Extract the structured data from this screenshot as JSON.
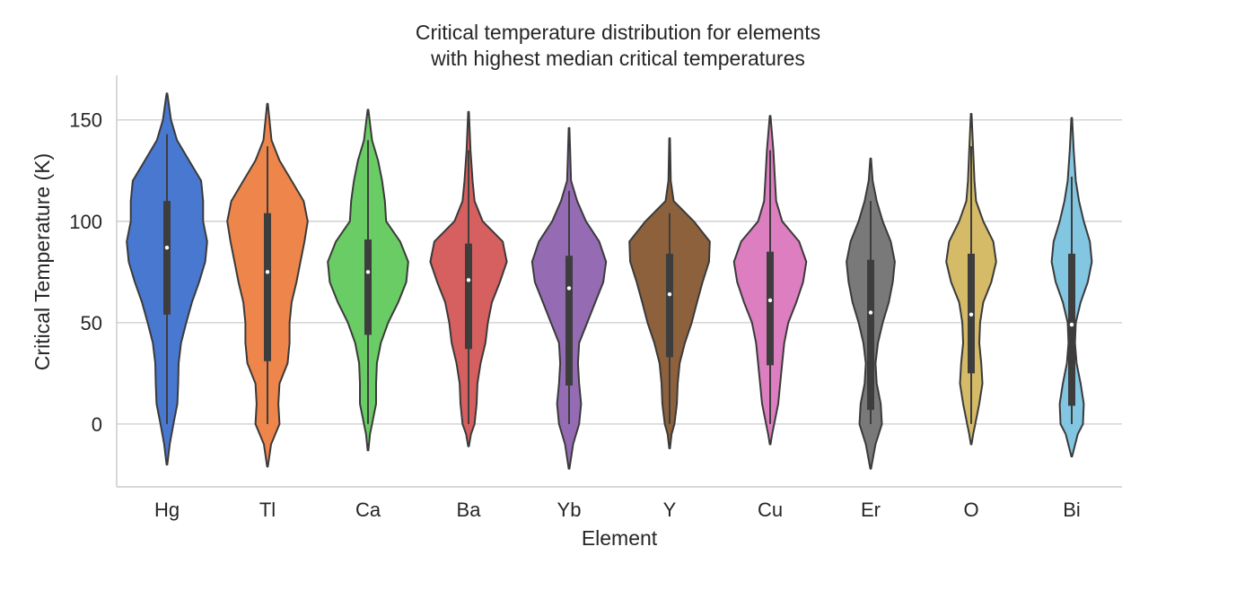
{
  "chart_data": {
    "type": "violin",
    "title": [
      "Critical temperature distribution for elements",
      "with highest median critical temperatures"
    ],
    "xlabel": "Element",
    "ylabel": "Critical Temperature (K)",
    "ylim": [
      -31,
      172
    ],
    "yticks": [
      0,
      50,
      100,
      150
    ],
    "grid": "horizontal",
    "categories": [
      "Hg",
      "Tl",
      "Ca",
      "Ba",
      "Yb",
      "Y",
      "Cu",
      "Er",
      "O",
      "Bi"
    ],
    "colors": [
      "#4878d0",
      "#ee854a",
      "#6acc64",
      "#d65f5f",
      "#956cb4",
      "#8c613c",
      "#dc7ec0",
      "#797979",
      "#d5bb67",
      "#82c6e2"
    ],
    "series": [
      {
        "category": "Hg",
        "min": 0,
        "q1": 54,
        "median": 87,
        "q3": 110,
        "max": 143,
        "kde_range": [
          -20,
          163
        ],
        "density": [
          [
            -20,
            0.01
          ],
          [
            -10,
            0.07
          ],
          [
            0,
            0.16
          ],
          [
            10,
            0.26
          ],
          [
            20,
            0.28
          ],
          [
            30,
            0.29
          ],
          [
            40,
            0.35
          ],
          [
            50,
            0.48
          ],
          [
            60,
            0.62
          ],
          [
            70,
            0.8
          ],
          [
            80,
            0.95
          ],
          [
            90,
            1.0
          ],
          [
            100,
            0.9
          ],
          [
            110,
            0.9
          ],
          [
            120,
            0.85
          ],
          [
            130,
            0.55
          ],
          [
            140,
            0.25
          ],
          [
            150,
            0.1
          ],
          [
            163,
            0.01
          ]
        ]
      },
      {
        "category": "Tl",
        "min": 0,
        "q1": 31,
        "median": 75,
        "q3": 104,
        "max": 137,
        "kde_range": [
          -21,
          158
        ],
        "density": [
          [
            -21,
            0.01
          ],
          [
            -10,
            0.09
          ],
          [
            0,
            0.3
          ],
          [
            10,
            0.27
          ],
          [
            20,
            0.3
          ],
          [
            30,
            0.5
          ],
          [
            40,
            0.55
          ],
          [
            50,
            0.55
          ],
          [
            60,
            0.6
          ],
          [
            70,
            0.72
          ],
          [
            80,
            0.82
          ],
          [
            90,
            0.92
          ],
          [
            100,
            1.0
          ],
          [
            110,
            0.9
          ],
          [
            120,
            0.6
          ],
          [
            130,
            0.3
          ],
          [
            140,
            0.1
          ],
          [
            158,
            0.01
          ]
        ]
      },
      {
        "category": "Ca",
        "min": 0,
        "q1": 44,
        "median": 75,
        "q3": 91,
        "max": 140,
        "kde_range": [
          -13,
          155
        ],
        "density": [
          [
            -13,
            0.01
          ],
          [
            -5,
            0.05
          ],
          [
            0,
            0.1
          ],
          [
            10,
            0.2
          ],
          [
            20,
            0.2
          ],
          [
            30,
            0.22
          ],
          [
            40,
            0.32
          ],
          [
            50,
            0.5
          ],
          [
            60,
            0.75
          ],
          [
            70,
            0.95
          ],
          [
            80,
            1.0
          ],
          [
            90,
            0.8
          ],
          [
            100,
            0.45
          ],
          [
            110,
            0.42
          ],
          [
            120,
            0.35
          ],
          [
            130,
            0.25
          ],
          [
            140,
            0.1
          ],
          [
            155,
            0.01
          ]
        ]
      },
      {
        "category": "Ba",
        "min": 0,
        "q1": 37,
        "median": 71,
        "q3": 89,
        "max": 135,
        "kde_range": [
          -11,
          154
        ],
        "density": [
          [
            -11,
            0.01
          ],
          [
            -5,
            0.06
          ],
          [
            0,
            0.15
          ],
          [
            10,
            0.2
          ],
          [
            20,
            0.22
          ],
          [
            30,
            0.3
          ],
          [
            40,
            0.42
          ],
          [
            50,
            0.48
          ],
          [
            60,
            0.58
          ],
          [
            70,
            0.78
          ],
          [
            80,
            0.95
          ],
          [
            90,
            0.85
          ],
          [
            100,
            0.35
          ],
          [
            110,
            0.15
          ],
          [
            120,
            0.1
          ],
          [
            135,
            0.05
          ],
          [
            154,
            0.01
          ]
        ]
      },
      {
        "category": "Yb",
        "min": 0,
        "q1": 19,
        "median": 67,
        "q3": 83,
        "max": 115,
        "kde_range": [
          -22,
          146
        ],
        "density": [
          [
            -22,
            0.01
          ],
          [
            -10,
            0.1
          ],
          [
            0,
            0.25
          ],
          [
            10,
            0.3
          ],
          [
            20,
            0.25
          ],
          [
            30,
            0.22
          ],
          [
            40,
            0.25
          ],
          [
            50,
            0.45
          ],
          [
            60,
            0.65
          ],
          [
            70,
            0.85
          ],
          [
            80,
            0.92
          ],
          [
            90,
            0.75
          ],
          [
            100,
            0.42
          ],
          [
            110,
            0.2
          ],
          [
            120,
            0.05
          ],
          [
            146,
            0.01
          ]
        ]
      },
      {
        "category": "Y",
        "min": 0,
        "q1": 33,
        "median": 64,
        "q3": 84,
        "max": 104,
        "kde_range": [
          -12,
          141
        ],
        "density": [
          [
            -12,
            0.01
          ],
          [
            -5,
            0.05
          ],
          [
            0,
            0.12
          ],
          [
            10,
            0.18
          ],
          [
            20,
            0.2
          ],
          [
            30,
            0.25
          ],
          [
            40,
            0.38
          ],
          [
            50,
            0.55
          ],
          [
            60,
            0.68
          ],
          [
            70,
            0.82
          ],
          [
            80,
            0.98
          ],
          [
            90,
            1.0
          ],
          [
            100,
            0.6
          ],
          [
            110,
            0.1
          ],
          [
            120,
            0.03
          ],
          [
            141,
            0.01
          ]
        ]
      },
      {
        "category": "Cu",
        "min": 0,
        "q1": 29,
        "median": 61,
        "q3": 85,
        "max": 135,
        "kde_range": [
          -10,
          152
        ],
        "density": [
          [
            -10,
            0.01
          ],
          [
            -5,
            0.05
          ],
          [
            0,
            0.1
          ],
          [
            10,
            0.2
          ],
          [
            20,
            0.25
          ],
          [
            30,
            0.3
          ],
          [
            40,
            0.35
          ],
          [
            50,
            0.45
          ],
          [
            60,
            0.65
          ],
          [
            70,
            0.82
          ],
          [
            80,
            0.9
          ],
          [
            90,
            0.72
          ],
          [
            100,
            0.3
          ],
          [
            110,
            0.15
          ],
          [
            120,
            0.12
          ],
          [
            135,
            0.08
          ],
          [
            152,
            0.01
          ]
        ]
      },
      {
        "category": "Er",
        "min": 0,
        "q1": 7,
        "median": 55,
        "q3": 81,
        "max": 110,
        "kde_range": [
          -22,
          131
        ],
        "density": [
          [
            -22,
            0.01
          ],
          [
            -10,
            0.12
          ],
          [
            0,
            0.28
          ],
          [
            10,
            0.25
          ],
          [
            20,
            0.15
          ],
          [
            30,
            0.12
          ],
          [
            40,
            0.18
          ],
          [
            50,
            0.3
          ],
          [
            60,
            0.45
          ],
          [
            70,
            0.55
          ],
          [
            80,
            0.6
          ],
          [
            90,
            0.5
          ],
          [
            100,
            0.3
          ],
          [
            110,
            0.15
          ],
          [
            120,
            0.05
          ],
          [
            131,
            0.01
          ]
        ]
      },
      {
        "category": "O",
        "min": 0,
        "q1": 25,
        "median": 54,
        "q3": 84,
        "max": 137,
        "kde_range": [
          -10,
          153
        ],
        "density": [
          [
            -10,
            0.01
          ],
          [
            -5,
            0.05
          ],
          [
            0,
            0.1
          ],
          [
            10,
            0.2
          ],
          [
            20,
            0.28
          ],
          [
            30,
            0.25
          ],
          [
            40,
            0.2
          ],
          [
            50,
            0.22
          ],
          [
            60,
            0.3
          ],
          [
            70,
            0.5
          ],
          [
            80,
            0.62
          ],
          [
            90,
            0.55
          ],
          [
            100,
            0.3
          ],
          [
            110,
            0.12
          ],
          [
            120,
            0.08
          ],
          [
            135,
            0.05
          ],
          [
            153,
            0.01
          ]
        ]
      },
      {
        "category": "Bi",
        "min": 0,
        "q1": 9,
        "median": 49,
        "q3": 84,
        "max": 122,
        "kde_range": [
          -16,
          151
        ],
        "density": [
          [
            -16,
            0.01
          ],
          [
            -5,
            0.15
          ],
          [
            0,
            0.28
          ],
          [
            10,
            0.3
          ],
          [
            20,
            0.22
          ],
          [
            30,
            0.12
          ],
          [
            40,
            0.08
          ],
          [
            50,
            0.1
          ],
          [
            60,
            0.22
          ],
          [
            70,
            0.4
          ],
          [
            80,
            0.5
          ],
          [
            90,
            0.45
          ],
          [
            100,
            0.3
          ],
          [
            110,
            0.18
          ],
          [
            120,
            0.1
          ],
          [
            135,
            0.05
          ],
          [
            151,
            0.01
          ]
        ]
      }
    ]
  }
}
